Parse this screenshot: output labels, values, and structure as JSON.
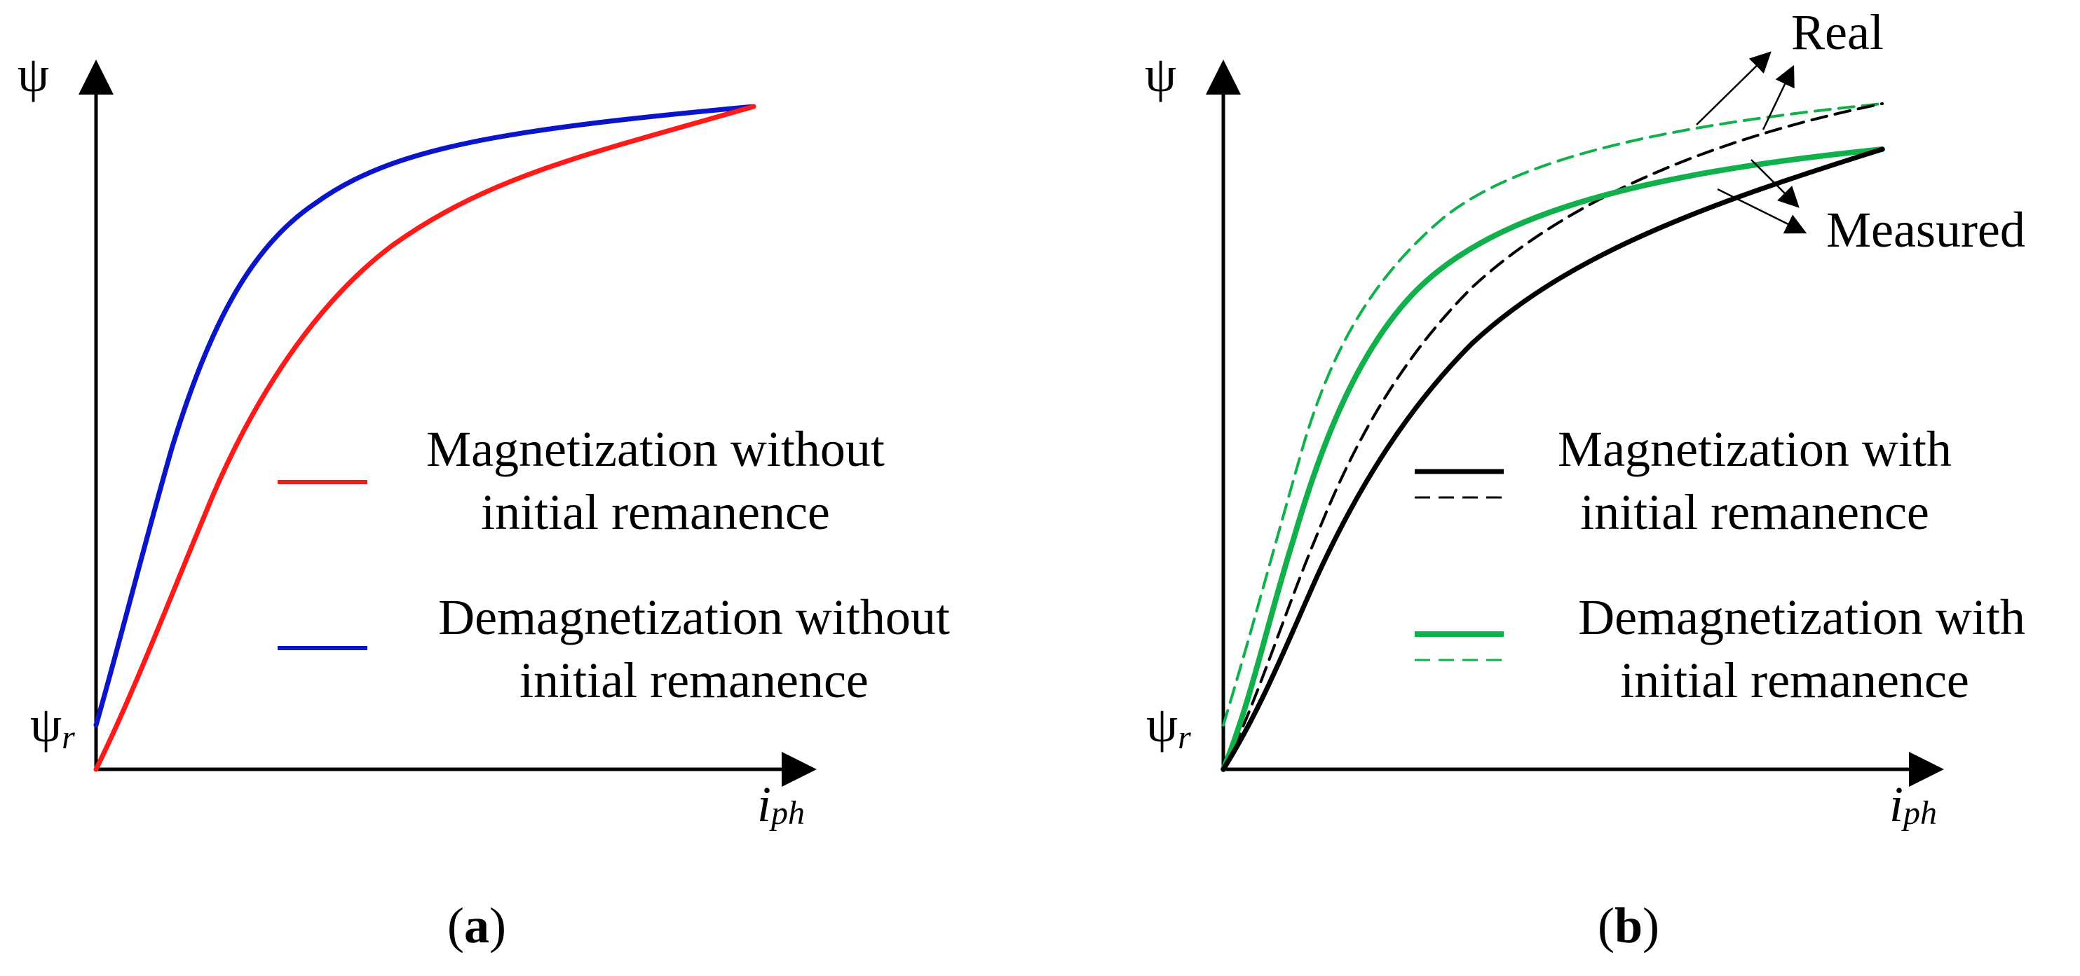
{
  "figure": {
    "colors": {
      "red": "#ff1a1a",
      "blue": "#0a14c8",
      "black": "#000000",
      "green": "#12b04c"
    },
    "panels": [
      {
        "label_letter": "a",
        "open_paren": "(",
        "close_paren": ")",
        "y_axis_symbol": "ψ",
        "remanence_symbol": "ψ",
        "remanence_subscript": "r",
        "x_axis_symbol": "i",
        "x_axis_subscript": "ph",
        "legend": [
          {
            "lines": [
              "Magnetization without",
              "initial remanence"
            ],
            "color": "#ff1a1a",
            "style": "solid"
          },
          {
            "lines": [
              "Demagnetization without",
              "initial remanence"
            ],
            "color": "#0a14c8",
            "style": "solid"
          }
        ]
      },
      {
        "label_letter": "b",
        "open_paren": "(",
        "close_paren": ")",
        "y_axis_symbol": "ψ",
        "remanence_symbol": "ψ",
        "remanence_subscript": "r",
        "x_axis_symbol": "i",
        "x_axis_subscript": "ph",
        "annotations": {
          "real": "Real",
          "measured": "Measured"
        },
        "legend": [
          {
            "lines": [
              "Magnetization with",
              "initial remanence"
            ],
            "color": "#000000",
            "style": "solid+dashed"
          },
          {
            "lines": [
              "Demagnetization with",
              "initial remanence"
            ],
            "color": "#12b04c",
            "style": "solid+dashed"
          }
        ]
      }
    ]
  }
}
